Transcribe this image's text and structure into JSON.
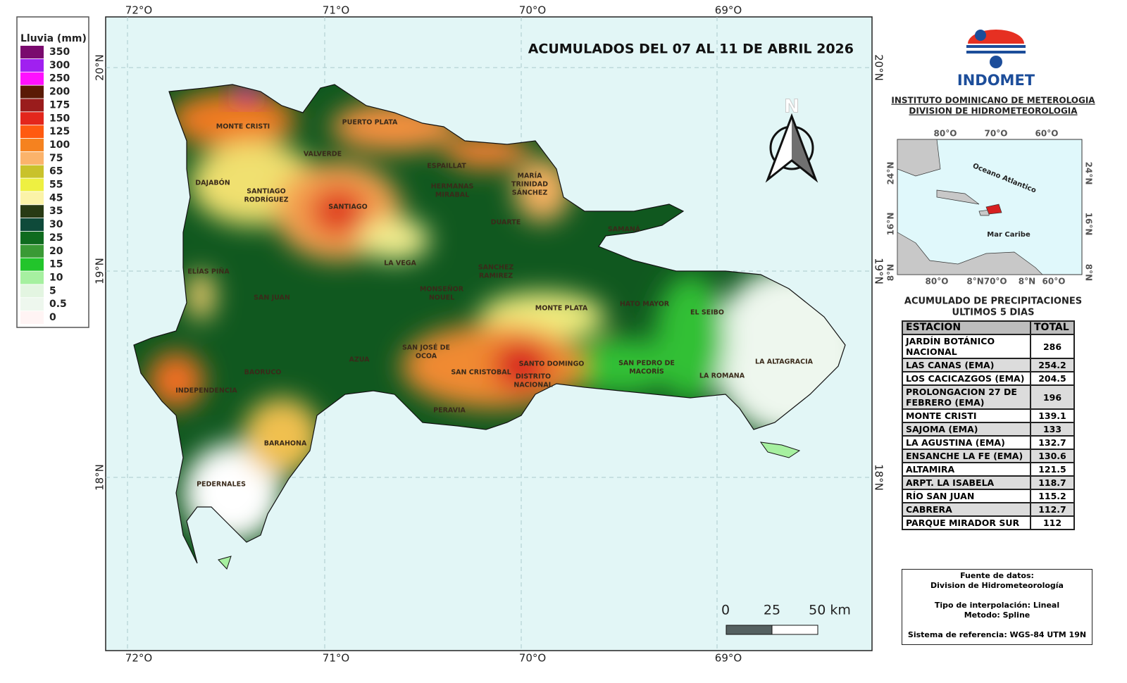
{
  "legend": {
    "title": "Lluvia (mm)",
    "items": [
      {
        "label": "350",
        "color": "#7a0a6e"
      },
      {
        "label": "300",
        "color": "#a020f0"
      },
      {
        "label": "250",
        "color": "#ff10ff"
      },
      {
        "label": "200",
        "color": "#5a1a05"
      },
      {
        "label": "175",
        "color": "#9a1c1c"
      },
      {
        "label": "150",
        "color": "#e3261c"
      },
      {
        "label": "125",
        "color": "#ff5a10"
      },
      {
        "label": "100",
        "color": "#f5821f"
      },
      {
        "label": "75",
        "color": "#fbb36b"
      },
      {
        "label": "65",
        "color": "#c9c22b"
      },
      {
        "label": "55",
        "color": "#eef041"
      },
      {
        "label": "45",
        "color": "#fbf3a8"
      },
      {
        "label": "35",
        "color": "#283a14"
      },
      {
        "label": "30",
        "color": "#0e4a3a"
      },
      {
        "label": "25",
        "color": "#0f6b1e"
      },
      {
        "label": "20",
        "color": "#3a9a35"
      },
      {
        "label": "15",
        "color": "#22c52b"
      },
      {
        "label": "10",
        "color": "#a6f0a0"
      },
      {
        "label": "5",
        "color": "#e3f5e1"
      },
      {
        "label": "0.5",
        "color": "#eef7ee"
      },
      {
        "label": "0",
        "color": "#fff4f4"
      }
    ]
  },
  "map": {
    "title": "ACUMULADOS DEL 07 AL 11 DE ABRIL 2026",
    "north": "N",
    "lon_labels": [
      "72°O",
      "71°O",
      "70°O",
      "69°O"
    ],
    "lat_labels": [
      "20°N",
      "19°N",
      "18°N"
    ],
    "scale": [
      "0",
      "25",
      "50 km"
    ],
    "provinces": [
      [
        "MONTE CRISTI"
      ],
      [
        "PUERTO PLATA"
      ],
      [
        "VALVERDE"
      ],
      [
        "ESPAILLAT"
      ],
      [
        "DAJABÓN"
      ],
      [
        "SANTIAGO",
        "RODRÍGUEZ"
      ],
      [
        "HERMANAS",
        "MIRABAL"
      ],
      [
        "MARÍA",
        "TRINIDAD",
        "SÁNCHEZ"
      ],
      [
        "SANTIAGO"
      ],
      [
        "DUARTE"
      ],
      [
        "SAMANÁ"
      ],
      [
        "ELÍAS PIÑA"
      ],
      [
        "LA VEGA"
      ],
      [
        "SANCHEZ",
        "RAMIREZ"
      ],
      [
        "MONSEÑOR",
        "NOUEL"
      ],
      [
        "SAN JUAN"
      ],
      [
        "MONTE PLATA"
      ],
      [
        "HATO MAYOR"
      ],
      [
        "EL SEIBO"
      ],
      [
        "SAN JOSÉ DE",
        "OCOA"
      ],
      [
        "SAN PEDRO DE",
        "MACORÍS"
      ],
      [
        "LA ALTAGRACIA"
      ],
      [
        "BAORUCO"
      ],
      [
        "AZUA"
      ],
      [
        "SAN CRISTOBAL"
      ],
      [
        "SANTO DOMINGO"
      ],
      [
        "DISTRITO",
        "NACIONAL"
      ],
      [
        "LA ROMANA"
      ],
      [
        "INDEPENDENCIA"
      ],
      [
        "PERAVIA"
      ],
      [
        "BARAHONA"
      ],
      [
        "PEDERNALES"
      ]
    ]
  },
  "header": {
    "logo": "INDOMET",
    "line1": "INSTITUTO DOMINICANO DE METEROLOGIA",
    "line2": "DIVISION DE HIDROMETEOROLOGIA"
  },
  "inset": {
    "top": [
      "80°O",
      "70°O",
      "60°O"
    ],
    "bottom": [
      "80°O",
      "8°N70°O",
      "8°N",
      "60°O"
    ],
    "left": [
      "24°N",
      "16°N",
      "8°N"
    ],
    "right": [
      "24°N",
      "16°N",
      "8°N"
    ],
    "ocean": "Oceano Atlantico",
    "sea": "Mar Caribe"
  },
  "table": {
    "title": [
      "ACUMULADO DE PRECIPITACIONES",
      "ULTIMOS 5 DIAS"
    ],
    "columns": [
      "ESTACION",
      "TOTAL"
    ],
    "rows": [
      [
        "JARDÍN BOTÁNICO NACIONAL",
        "286"
      ],
      [
        "LAS CANAS (EMA)",
        "254.2"
      ],
      [
        "LOS CACICAZGOS (EMA)",
        "204.5"
      ],
      [
        "PROLONGACION 27 DE FEBRERO (EMA)",
        "196"
      ],
      [
        "MONTE CRISTI",
        "139.1"
      ],
      [
        "SAJOMA (EMA)",
        "133"
      ],
      [
        "LA AGUSTINA (EMA)",
        "132.7"
      ],
      [
        "ENSANCHE LA FE (EMA)",
        "130.6"
      ],
      [
        "ALTAMIRA",
        "121.5"
      ],
      [
        "ARPT. LA ISABELA",
        "118.7"
      ],
      [
        "RÍO SAN JUAN",
        "115.2"
      ],
      [
        "CABRERA",
        "112.7"
      ],
      [
        "PARQUE MIRADOR SUR",
        "112"
      ]
    ]
  },
  "source": [
    "Fuente de datos:",
    "Division de Hidrometeorología",
    "Tipo de interpolación: Lineal",
    "Metodo: Spline",
    "Sistema de referencia: WGS-84 UTM 19N"
  ]
}
